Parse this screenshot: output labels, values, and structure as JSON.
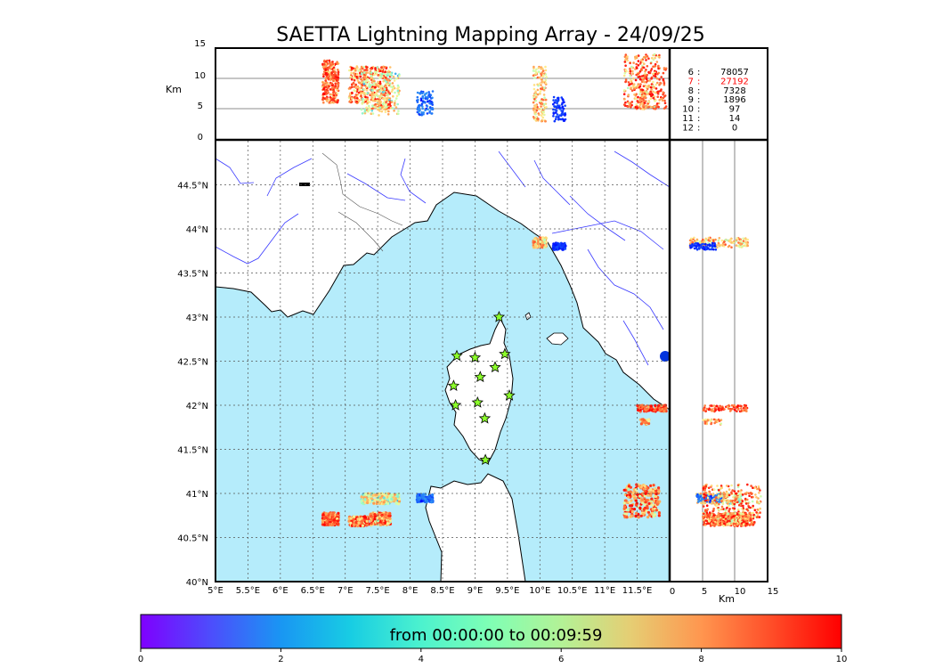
{
  "title": "SAETTA Lightning Mapping Array - 24/09/25",
  "colorbar": {
    "label": "from 00:00:00 to 00:09:59",
    "ticks": [
      "0",
      "2",
      "4",
      "6",
      "8",
      "10"
    ],
    "range": [
      0,
      10
    ]
  },
  "station_counts": [
    {
      "label": "6",
      "value": "78057",
      "highlight": false
    },
    {
      "label": "7",
      "value": "27192",
      "highlight": true
    },
    {
      "label": "8",
      "value": "7328",
      "highlight": false
    },
    {
      "label": "9",
      "value": "1896",
      "highlight": false
    },
    {
      "label": "10",
      "value": "97",
      "highlight": false
    },
    {
      "label": "11",
      "value": "14",
      "highlight": false
    },
    {
      "label": "12",
      "value": "0",
      "highlight": false
    }
  ],
  "colors": {
    "sea": "#b5ecfb",
    "river": "#3a3aff",
    "station": "#8cff2a",
    "highlight": "#ff0000"
  },
  "chart_data": {
    "type": "scatter",
    "map": {
      "xlim": [
        5,
        12
      ],
      "ylim": [
        40,
        45
      ],
      "x_ticks": [
        "5°E",
        "5.5°E",
        "6°E",
        "6.5°E",
        "7°E",
        "7.5°E",
        "8°E",
        "8.5°E",
        "9°E",
        "9.5°E",
        "10°E",
        "10.5°E",
        "11°E",
        "11.5°E"
      ],
      "y_ticks": [
        "40°N",
        "40.5°N",
        "41°N",
        "41.5°N",
        "42°N",
        "42.5°N",
        "43°N",
        "43.5°N",
        "44°N",
        "44.5°N"
      ],
      "grid": "dotted"
    },
    "altitude_lon_panel": {
      "ylabel": "Km",
      "ylim": [
        0,
        15
      ],
      "y_ticks": [
        "0",
        "5",
        "10",
        "15"
      ]
    },
    "altitude_lat_panel": {
      "xlabel": "Km",
      "xlim": [
        0,
        15
      ],
      "x_ticks": [
        "0",
        "5",
        "10",
        "15"
      ]
    },
    "stations": [
      {
        "lon": 9.37,
        "lat": 43.0
      },
      {
        "lon": 8.72,
        "lat": 42.56
      },
      {
        "lon": 9.0,
        "lat": 42.54
      },
      {
        "lon": 9.46,
        "lat": 42.58
      },
      {
        "lon": 9.31,
        "lat": 42.43
      },
      {
        "lon": 9.08,
        "lat": 42.32
      },
      {
        "lon": 8.67,
        "lat": 42.22
      },
      {
        "lon": 9.53,
        "lat": 42.11
      },
      {
        "lon": 8.7,
        "lat": 42.0
      },
      {
        "lon": 9.04,
        "lat": 42.03
      },
      {
        "lon": 9.15,
        "lat": 41.85
      },
      {
        "lon": 9.16,
        "lat": 41.38
      }
    ],
    "clusters": [
      {
        "lon": [
          6.65,
          6.9
        ],
        "lat": [
          40.64,
          40.78
        ],
        "alt": [
          6,
          13
        ],
        "time": [
          6,
          10
        ],
        "n": 260
      },
      {
        "lon": [
          7.05,
          7.35
        ],
        "lat": [
          40.63,
          40.74
        ],
        "alt": [
          6,
          12
        ],
        "time": [
          5,
          10
        ],
        "n": 180
      },
      {
        "lon": [
          7.38,
          7.7
        ],
        "lat": [
          40.64,
          40.78
        ],
        "alt": [
          5,
          12
        ],
        "time": [
          4,
          10
        ],
        "n": 220
      },
      {
        "lon": [
          7.25,
          7.85
        ],
        "lat": [
          40.88,
          41.0
        ],
        "alt": [
          4,
          11
        ],
        "time": [
          2,
          8
        ],
        "n": 200
      },
      {
        "lon": [
          8.1,
          8.35
        ],
        "lat": [
          40.9,
          40.99
        ],
        "alt": [
          4,
          8
        ],
        "time": [
          0,
          2
        ],
        "n": 90
      },
      {
        "lon": [
          9.9,
          10.1
        ],
        "lat": [
          43.79,
          43.9
        ],
        "alt": [
          3,
          12
        ],
        "time": [
          4,
          9
        ],
        "n": 140
      },
      {
        "lon": [
          10.2,
          10.4
        ],
        "lat": [
          43.76,
          43.84
        ],
        "alt": [
          3,
          7
        ],
        "time": [
          0,
          1
        ],
        "n": 70
      },
      {
        "lon": [
          11.3,
          11.85
        ],
        "lat": [
          40.73,
          41.1
        ],
        "alt": [
          5,
          14
        ],
        "time": [
          4,
          10
        ],
        "n": 260
      },
      {
        "lon": [
          11.5,
          11.95
        ],
        "lat": [
          41.93,
          42.0
        ],
        "alt": [
          5,
          12
        ],
        "time": [
          7,
          10
        ],
        "n": 90
      },
      {
        "lon": [
          11.55,
          11.7
        ],
        "lat": [
          41.78,
          41.84
        ],
        "alt": [
          5,
          8
        ],
        "time": [
          5,
          9
        ],
        "n": 30
      }
    ]
  }
}
